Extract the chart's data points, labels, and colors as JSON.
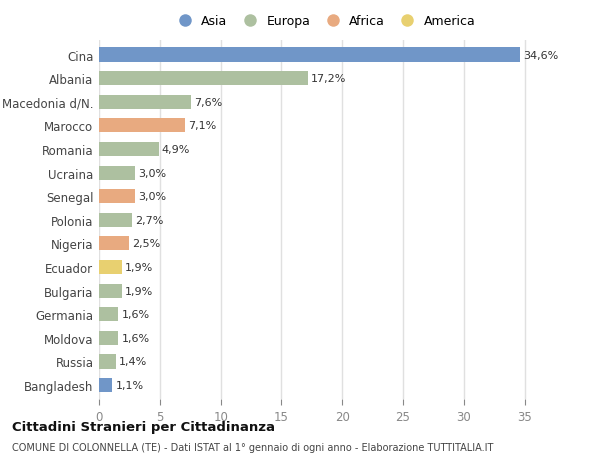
{
  "countries": [
    "Cina",
    "Albania",
    "Macedonia d/N.",
    "Marocco",
    "Romania",
    "Ucraina",
    "Senegal",
    "Polonia",
    "Nigeria",
    "Ecuador",
    "Bulgaria",
    "Germania",
    "Moldova",
    "Russia",
    "Bangladesh"
  ],
  "values": [
    34.6,
    17.2,
    7.6,
    7.1,
    4.9,
    3.0,
    3.0,
    2.7,
    2.5,
    1.9,
    1.9,
    1.6,
    1.6,
    1.4,
    1.1
  ],
  "labels": [
    "34,6%",
    "17,2%",
    "7,6%",
    "7,1%",
    "4,9%",
    "3,0%",
    "3,0%",
    "2,7%",
    "2,5%",
    "1,9%",
    "1,9%",
    "1,6%",
    "1,6%",
    "1,4%",
    "1,1%"
  ],
  "continents": [
    "Asia",
    "Europa",
    "Europa",
    "Africa",
    "Europa",
    "Europa",
    "Africa",
    "Europa",
    "Africa",
    "America",
    "Europa",
    "Europa",
    "Europa",
    "Europa",
    "Asia"
  ],
  "colors": {
    "Asia": "#7096c8",
    "Europa": "#adc0a0",
    "Africa": "#e8aa80",
    "America": "#e8d070"
  },
  "xlim": [
    0,
    37
  ],
  "xticks": [
    0,
    5,
    10,
    15,
    20,
    25,
    30,
    35
  ],
  "background_color": "#ffffff",
  "title": "Cittadini Stranieri per Cittadinanza",
  "subtitle": "COMUNE DI COLONNELLA (TE) - Dati ISTAT al 1° gennaio di ogni anno - Elaborazione TUTTITALIA.IT",
  "bar_height": 0.6,
  "legend_order": [
    "Asia",
    "Europa",
    "Africa",
    "America"
  ]
}
